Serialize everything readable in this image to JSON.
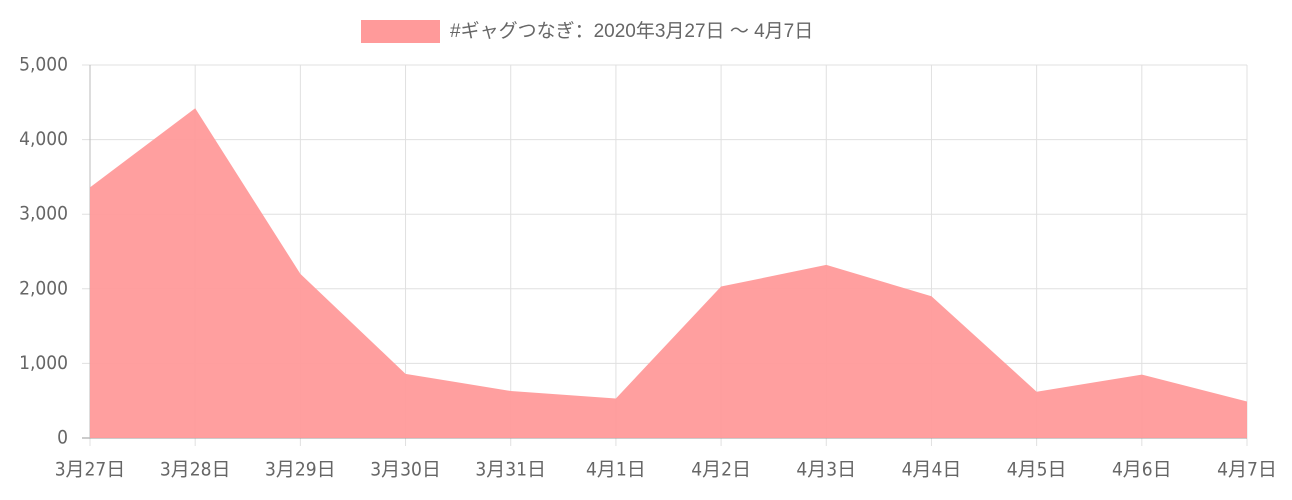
{
  "chart_data": {
    "type": "area",
    "categories": [
      "3月27日",
      "3月28日",
      "3月29日",
      "3月30日",
      "3月31日",
      "4月1日",
      "4月2日",
      "4月3日",
      "4月4日",
      "4月5日",
      "4月6日",
      "4月7日"
    ],
    "series": [
      {
        "name": "#ギャグつなぎ：2020年3月27日 ～ 4月7日",
        "color": "#ff9a9a",
        "values": [
          3360,
          4420,
          2200,
          860,
          630,
          530,
          2030,
          2320,
          1900,
          620,
          850,
          490
        ]
      }
    ],
    "ylim": [
      0,
      5000
    ],
    "yticks": [
      0,
      {
        "value": 1000,
        "label": "1,000"
      },
      {
        "value": 2000,
        "label": "2,000"
      },
      {
        "value": 3000,
        "label": "3,000"
      },
      {
        "value": 4000,
        "label": "4,000"
      },
      {
        "value": 5000,
        "label": "5,000"
      }
    ],
    "grid": true,
    "legend": "top"
  }
}
